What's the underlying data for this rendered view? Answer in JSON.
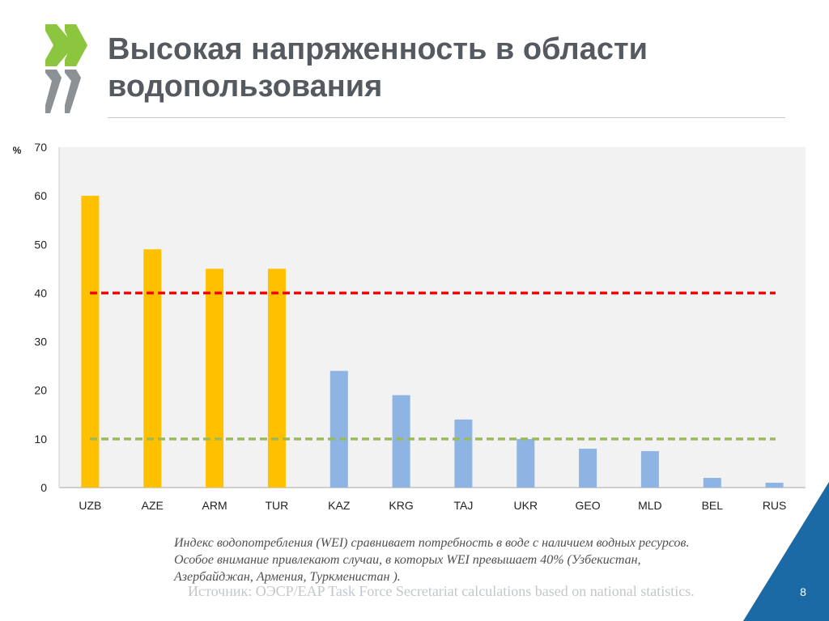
{
  "slide": {
    "title_line1": "Высокая напряженность в области",
    "title_line2": "водопользования",
    "caption_line1": "Индекс водопотребления (WEI) сравнивает потребность в воде с наличием водных ресурсов.",
    "caption_line2": "Особое внимание привлекают случаи,  в которых WEI  превышает 40% (Узбекистан,",
    "caption_line3": "Азербайджан, Армения, Туркменистан ).",
    "source": "Источник: ОЭСР/EAP Task Force Secretariat calculations based on national statistics.",
    "page_number": "8"
  },
  "colors": {
    "accent_green": "#8cc63f",
    "logo_grey": "#8c9196",
    "corner_blue": "#1b6aa5",
    "high_bar": "#ffc000",
    "low_bar": "#8db4e2",
    "threshold_high": "#ff0000",
    "threshold_low": "#9bbb59",
    "plot_bg": "#f2f2f2"
  },
  "chart_data": {
    "type": "bar",
    "ylabel": "%",
    "ylim": [
      0,
      70
    ],
    "yticks": [
      0,
      10,
      20,
      30,
      40,
      50,
      60,
      70
    ],
    "grid": false,
    "legend": "none",
    "categories": [
      "UZB",
      "AZE",
      "ARM",
      "TUR",
      "KAZ",
      "KRG",
      "TAJ",
      "UKR",
      "GEO",
      "MLD",
      "BEL",
      "RUS"
    ],
    "values": [
      60,
      49,
      45,
      45,
      24,
      19,
      14,
      10,
      8,
      7.5,
      2,
      1
    ],
    "bar_colors": [
      "#ffc000",
      "#ffc000",
      "#ffc000",
      "#ffc000",
      "#8db4e2",
      "#8db4e2",
      "#8db4e2",
      "#8db4e2",
      "#8db4e2",
      "#8db4e2",
      "#8db4e2",
      "#8db4e2"
    ],
    "reference_lines": [
      {
        "y": 40,
        "color": "#ff0000",
        "style": "dashed"
      },
      {
        "y": 10,
        "color": "#9bbb59",
        "style": "dashed"
      }
    ]
  }
}
